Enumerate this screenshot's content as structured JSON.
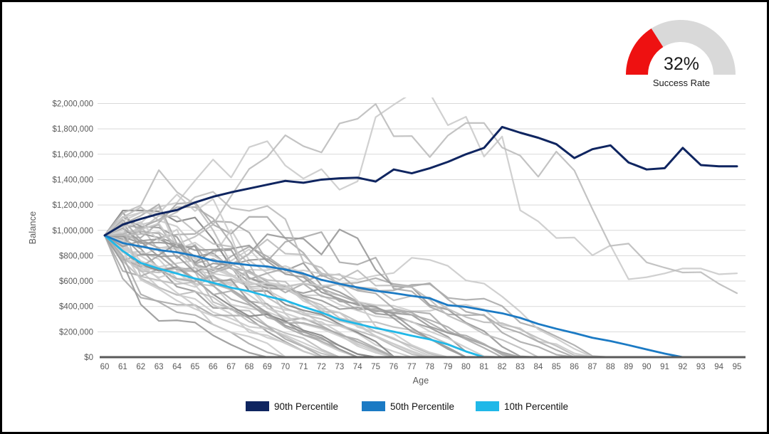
{
  "gauge": {
    "value_label": "32%",
    "caption": "Success Rate",
    "percent": 32,
    "arc_color": "#ee1111",
    "track_color": "#d9d9d9"
  },
  "chart_data": {
    "type": "line",
    "title": "",
    "xlabel": "Age",
    "ylabel": "Balance",
    "x": [
      60,
      61,
      62,
      63,
      64,
      65,
      66,
      67,
      68,
      69,
      70,
      71,
      72,
      73,
      74,
      75,
      76,
      77,
      78,
      79,
      80,
      81,
      82,
      83,
      84,
      85,
      86,
      87,
      88,
      89,
      90,
      91,
      92,
      93,
      94,
      95
    ],
    "xlim": [
      60,
      95
    ],
    "ylim": [
      0,
      2000000
    ],
    "y_tick_values": [
      0,
      200000,
      400000,
      600000,
      800000,
      1000000,
      1200000,
      1400000,
      1600000,
      1800000,
      2000000
    ],
    "y_tick_labels": [
      "$0",
      "$200,000",
      "$400,000",
      "$600,000",
      "$800,000",
      "$1,000,000",
      "$1,200,000",
      "$1,400,000",
      "$1,600,000",
      "$1,800,000",
      "$2,000,000"
    ],
    "grid": "horizontal",
    "legend_position": "bottom",
    "series": [
      {
        "name": "90th Percentile",
        "color": "#0f2560",
        "values": [
          960000,
          1045000,
          1090000,
          1130000,
          1160000,
          1220000,
          1265000,
          1300000,
          1330000,
          1360000,
          1390000,
          1375000,
          1400000,
          1410000,
          1415000,
          1385000,
          1480000,
          1450000,
          1490000,
          1540000,
          1600000,
          1650000,
          1815000,
          1770000,
          1730000,
          1680000,
          1570000,
          1640000,
          1670000,
          1535000,
          1480000,
          1490000,
          1650000,
          1515000,
          1505000,
          1505000
        ]
      },
      {
        "name": "50th Percentile",
        "color": "#1b7ac4",
        "values": [
          960000,
          900000,
          873000,
          845000,
          827000,
          799000,
          761000,
          743000,
          726000,
          715000,
          691000,
          659000,
          610000,
          578000,
          550000,
          523000,
          505000,
          483000,
          464000,
          410000,
          396000,
          370000,
          346000,
          310000,
          262000,
          224000,
          190000,
          153000,
          127000,
          95000,
          61000,
          28000,
          0,
          0,
          0,
          0
        ]
      },
      {
        "name": "10th Percentile",
        "color": "#20b8e8",
        "values": [
          960000,
          838000,
          743000,
          698000,
          659000,
          620000,
          587000,
          548000,
          520000,
          480000,
          447000,
          397000,
          352000,
          296000,
          263000,
          229000,
          201000,
          169000,
          140000,
          100000,
          45000,
          0,
          0,
          0,
          0,
          0,
          0,
          0,
          0,
          0,
          0,
          0,
          0,
          0,
          0,
          0
        ]
      }
    ],
    "background_simulations": {
      "count": 47,
      "seed": 9,
      "start": 960000,
      "mean_return": 0.032,
      "stdev_return": 0.128,
      "annual_withdrawal": 70000,
      "colors": [
        "#cbcbcb",
        "#bdbdbd",
        "#ababab",
        "#999999",
        "#858585"
      ],
      "color_weights": [
        0.3,
        0.25,
        0.2,
        0.15,
        0.1
      ]
    }
  },
  "legend": {
    "items": [
      {
        "label": "90th Percentile",
        "color": "#0f2560"
      },
      {
        "label": "50th Percentile",
        "color": "#1b7ac4"
      },
      {
        "label": "10th Percentile",
        "color": "#20b8e8"
      }
    ]
  },
  "axis_colors": {
    "grid": "#d9d9d9",
    "axis_line": "#595959",
    "tick_text": "#595959"
  }
}
